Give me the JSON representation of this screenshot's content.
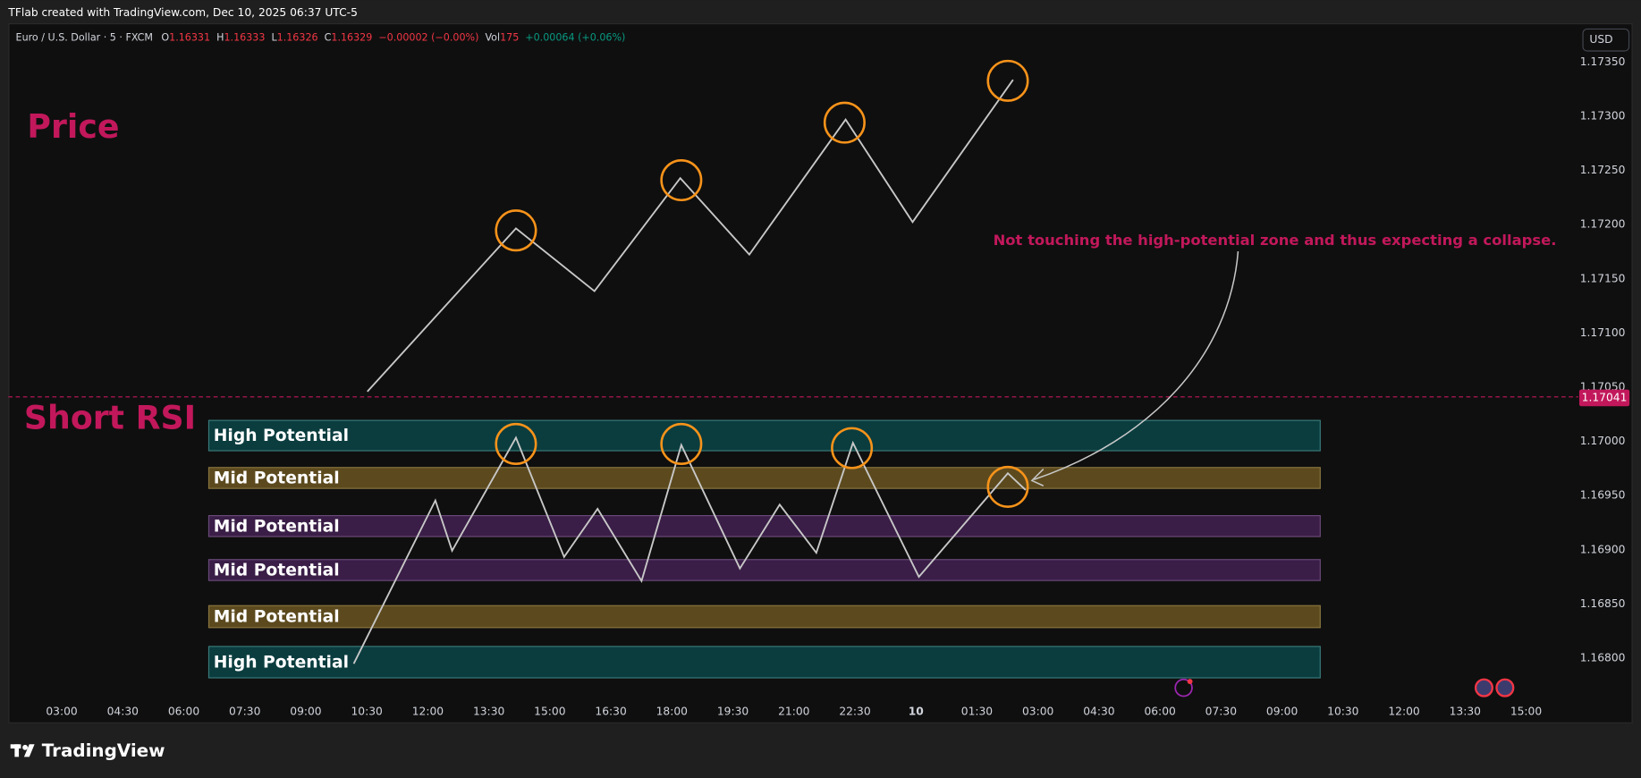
{
  "header": {
    "title": "TFlab created with TradingView.com, Dec 10, 2025 06:37 UTC-5"
  },
  "legend": {
    "symbol": "Euro / U.S. Dollar · 5 · FXCM",
    "items": [
      {
        "key": "O",
        "value": "1.16331"
      },
      {
        "key": "H",
        "value": "1.16333"
      },
      {
        "key": "L",
        "value": "1.16326"
      },
      {
        "key": "C",
        "value": "1.16329"
      }
    ],
    "change": "−0.00002 (−0.00%)",
    "vol_key": "Vol",
    "vol": "175",
    "vol_change": "+0.00064 (+0.06%)"
  },
  "currency_button": "USD",
  "price_axis": [
    "1.17350",
    "1.17300",
    "1.17250",
    "1.17200",
    "1.17150",
    "1.17100",
    "1.17050",
    "1.17000",
    "1.16950",
    "1.16900",
    "1.16850",
    "1.16800"
  ],
  "current_price": "1.17041",
  "time_axis": [
    "03:00",
    "04:30",
    "06:00",
    "07:30",
    "09:00",
    "10:30",
    "12:00",
    "13:30",
    "15:00",
    "16:30",
    "18:00",
    "19:30",
    "21:00",
    "22:30",
    "10",
    "01:30",
    "03:00",
    "04:30",
    "06:00",
    "07:30",
    "09:00",
    "10:30",
    "12:00",
    "13:30",
    "15:00"
  ],
  "labels": {
    "price": "Price",
    "rsi": "Short RSI"
  },
  "zones": [
    "High Potential",
    "Mid Potential",
    "Mid Potential",
    "Mid Potential",
    "Mid Potential",
    "High Potential"
  ],
  "annotation": "Not touching the high-potential zone and thus expecting a collapse.",
  "brand": "TradingView"
}
